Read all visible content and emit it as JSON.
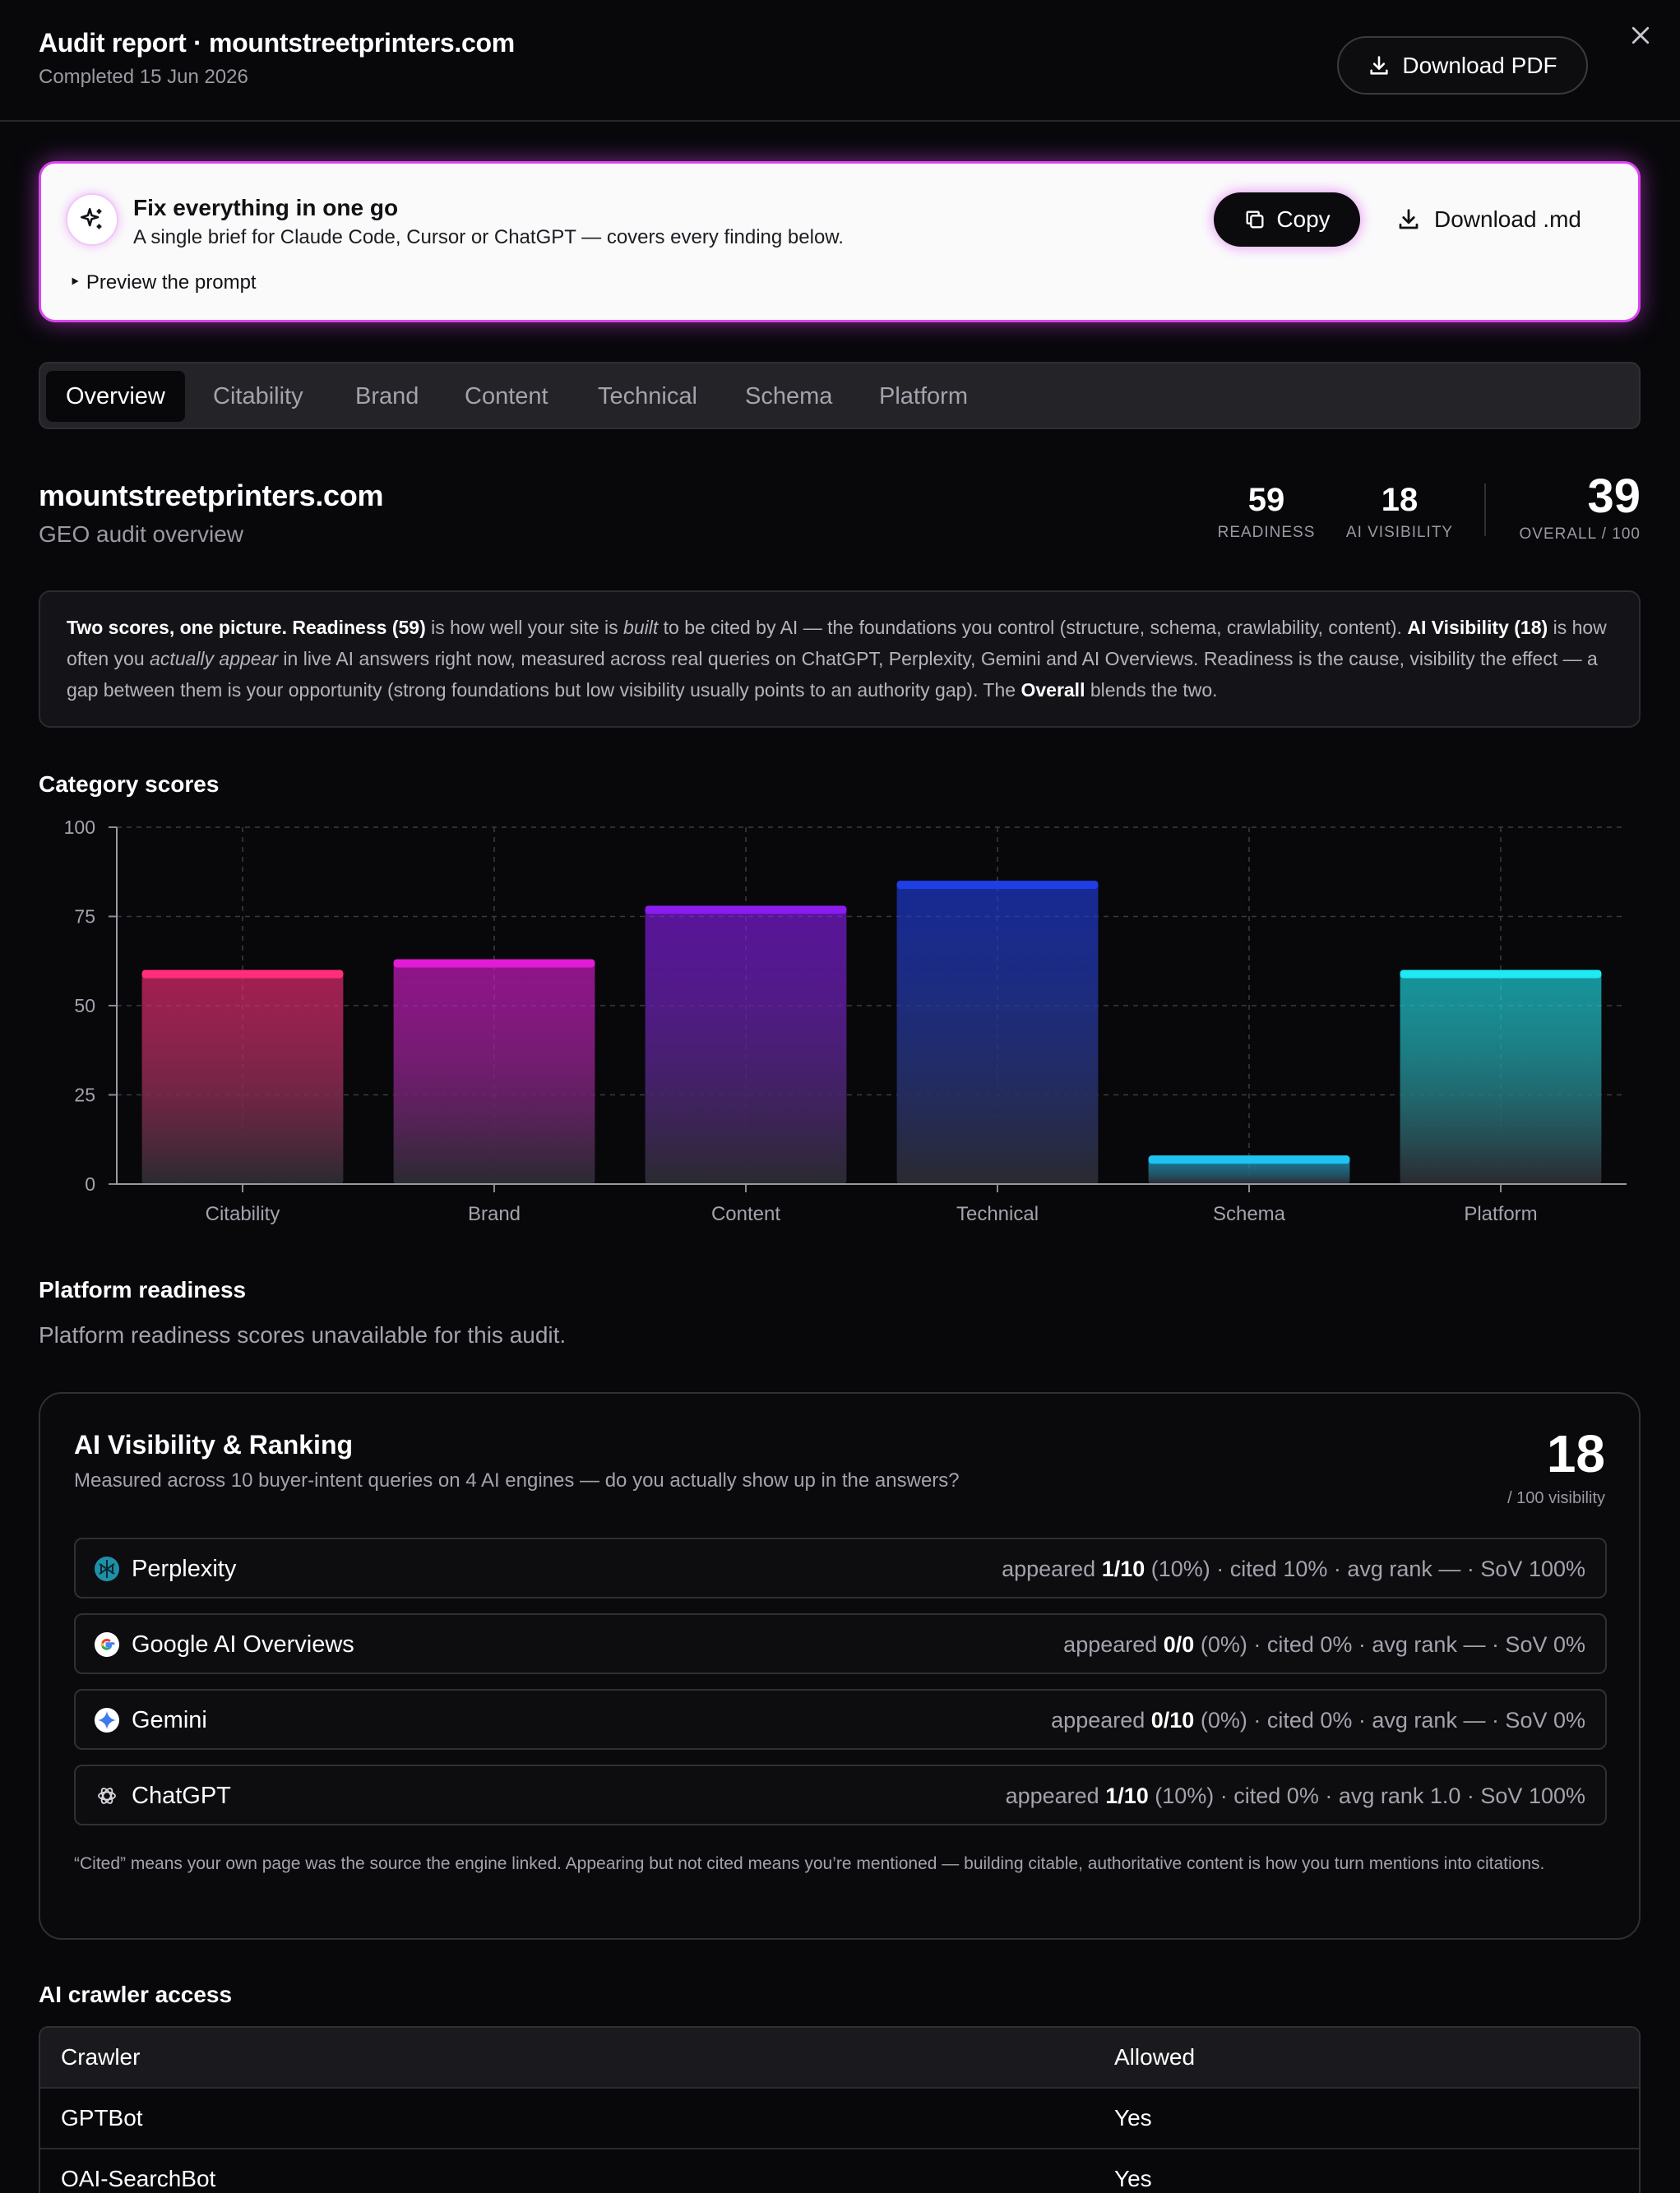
{
  "header": {
    "title": "Audit report · mountstreetprinters.com",
    "subtitle": "Completed 15 Jun 2026",
    "download_pdf": "Download PDF"
  },
  "fix_banner": {
    "title": "Fix everything in one go",
    "description": "A single brief for Claude Code, Cursor or ChatGPT — covers every finding below.",
    "preview": "‣ Preview the prompt",
    "copy": "Copy",
    "download_md": "Download .md",
    "accent": "#d946ef"
  },
  "tabs": [
    "Overview",
    "Citability",
    "Brand",
    "Content",
    "Technical",
    "Schema",
    "Platform"
  ],
  "active_tab": "Overview",
  "overview": {
    "site": "mountstreetprinters.com",
    "subtitle": "GEO audit overview",
    "readiness": {
      "value": "59",
      "label": "READINESS"
    },
    "ai_visibility": {
      "value": "18",
      "label": "AI VISIBILITY"
    },
    "overall": {
      "value": "39",
      "label": "OVERALL / 100"
    }
  },
  "explainer": {
    "lead": "Two scores, one picture.",
    "readiness_label": "Readiness (59)",
    "t1": " is how well your site is ",
    "built": "built",
    "t2": " to be cited by AI — the foundations you control (structure, schema, crawlability, content). ",
    "visibility_label": "AI Visibility (18)",
    "t3": " is how often you ",
    "actually_appear": "actually appear",
    "t4": " in live AI answers right now, measured across real queries on ChatGPT, Perplexity, Gemini and AI Overviews. Readiness is the cause, visibility the effect — a gap between them is your opportunity (strong foundations but low visibility usually points to an authority gap). The ",
    "overall_label": "Overall",
    "t5": " blends the two."
  },
  "category_title": "Category scores",
  "chart_data": {
    "type": "bar",
    "categories": [
      "Citability",
      "Brand",
      "Content",
      "Technical",
      "Schema",
      "Platform"
    ],
    "values": [
      60,
      63,
      78,
      85,
      8,
      60
    ],
    "colors": [
      "#ff2d7a",
      "#e21bd6",
      "#8a1cf0",
      "#1f3ee6",
      "#1ec3f2",
      "#1eeaf2"
    ],
    "ylim": [
      0,
      100
    ],
    "yticks": [
      0,
      25,
      50,
      75,
      100
    ],
    "grid": true
  },
  "platform_readiness": {
    "title": "Platform readiness",
    "message": "Platform readiness scores unavailable for this audit."
  },
  "ai_visibility": {
    "title": "AI Visibility & Ranking",
    "subtitle": "Measured across 10 buyer-intent queries on 4 AI engines — do you actually show up in the answers?",
    "score": "18",
    "score_label": "/ 100 visibility",
    "engines": [
      {
        "name": "Perplexity",
        "icon": "perplexity-icon",
        "appeared_prefix": "appeared ",
        "appeared": "1/10",
        "rest": " (10%) · cited 10% · avg rank — · SoV 100%"
      },
      {
        "name": "Google AI Overviews",
        "icon": "google-icon",
        "appeared_prefix": "appeared ",
        "appeared": "0/0",
        "rest": " (0%) · cited 0% · avg rank — · SoV 0%"
      },
      {
        "name": "Gemini",
        "icon": "gemini-icon",
        "appeared_prefix": "appeared ",
        "appeared": "0/10",
        "rest": " (0%) · cited 0% · avg rank — · SoV 0%"
      },
      {
        "name": "ChatGPT",
        "icon": "chatgpt-icon",
        "appeared_prefix": "appeared ",
        "appeared": "1/10",
        "rest": " (10%) · cited 0% · avg rank 1.0 · SoV 100%"
      }
    ],
    "footnote": "“Cited” means your own page was the source the engine linked. Appearing but not cited means you’re mentioned — building citable, authoritative content is how you turn mentions into citations."
  },
  "crawler_access": {
    "title": "AI crawler access",
    "headers": [
      "Crawler",
      "Allowed"
    ],
    "rows": [
      [
        "GPTBot",
        "Yes"
      ],
      [
        "OAI-SearchBot",
        "Yes"
      ]
    ]
  }
}
